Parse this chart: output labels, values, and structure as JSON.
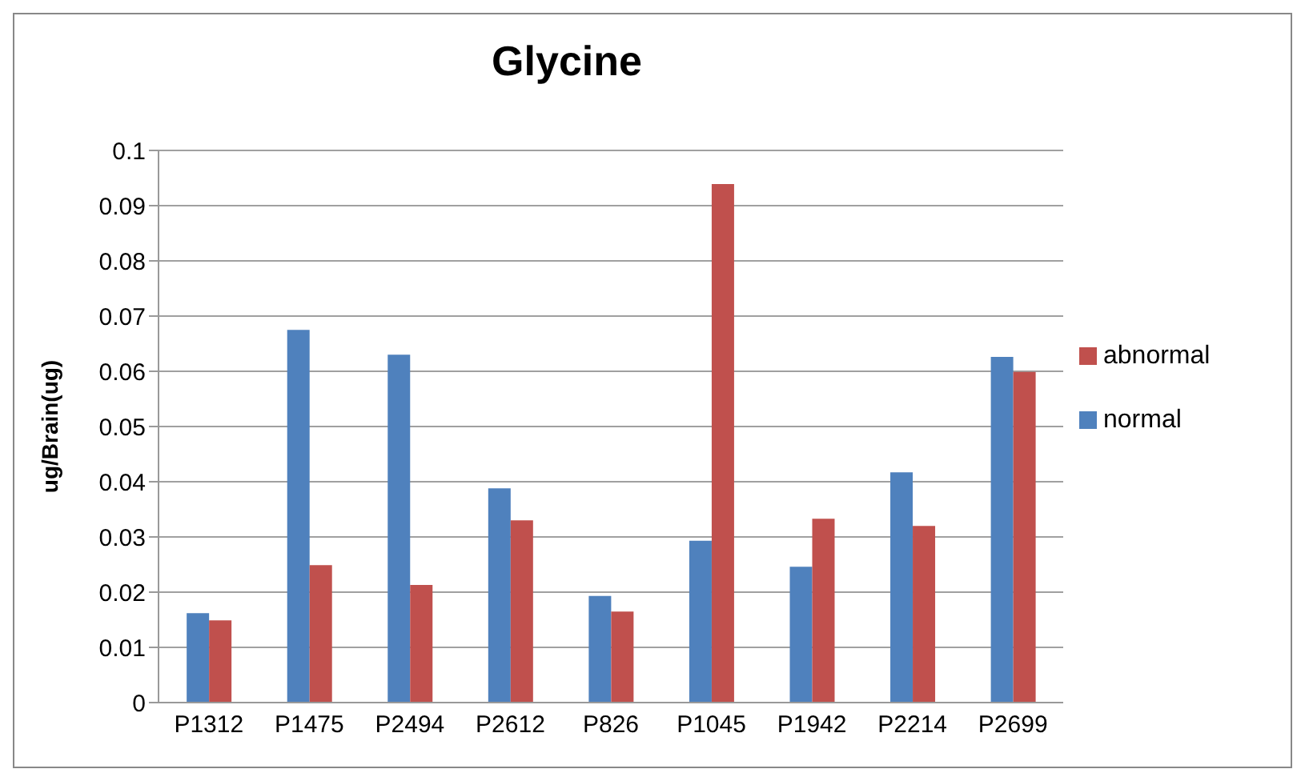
{
  "chart_data": {
    "type": "bar",
    "title": "Glycine",
    "ylabel": "ug/Brain(ug)",
    "categories": [
      "P1312",
      "P1475",
      "P2494",
      "P2612",
      "P826",
      "P1045",
      "P1942",
      "P2214",
      "P2699"
    ],
    "series": [
      {
        "name": "normal",
        "color": "#4f81bd",
        "values": [
          0.0162,
          0.0675,
          0.063,
          0.0388,
          0.0193,
          0.0293,
          0.0246,
          0.0417,
          0.0626
        ]
      },
      {
        "name": "abnormal",
        "color": "#c0504d",
        "values": [
          0.0149,
          0.0249,
          0.0213,
          0.033,
          0.0165,
          0.0939,
          0.0333,
          0.032,
          0.0599
        ]
      }
    ],
    "ylim": [
      0,
      0.1
    ],
    "yticks": [
      0,
      0.01,
      0.02,
      0.03,
      0.04,
      0.05,
      0.06,
      0.07,
      0.08,
      0.09,
      0.1
    ],
    "grid": "y",
    "legend": "right"
  }
}
